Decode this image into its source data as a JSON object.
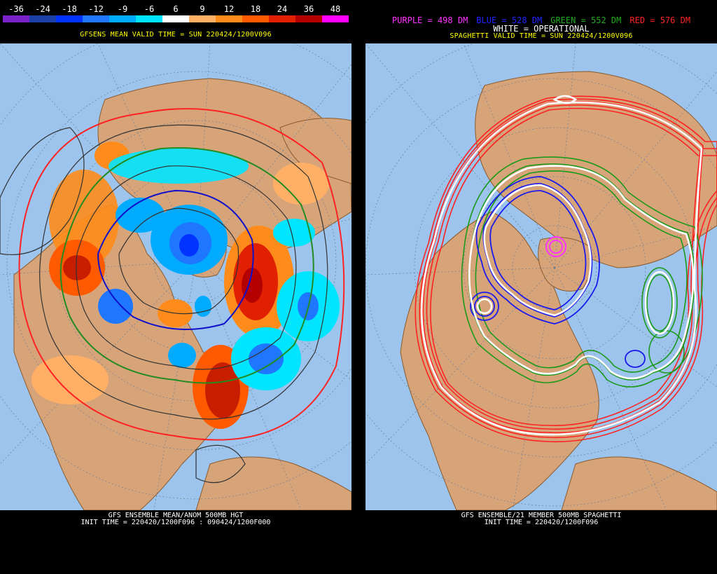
{
  "left": {
    "scale_labels": [
      "-36",
      "-24",
      "-18",
      "-12",
      "-9",
      "-6",
      "6",
      "9",
      "12",
      "18",
      "24",
      "36",
      "48"
    ],
    "scale_colors": [
      "#7a22c9",
      "#1a3fa6",
      "#0033ff",
      "#1f77ff",
      "#00aaff",
      "#00e5ff",
      "#ffffff",
      "#ffb066",
      "#ff8c1a",
      "#ff5a00",
      "#e02000",
      "#b40000",
      "#ff00ff"
    ],
    "header": "GFSENS MEAN VALID TIME = SUN 220424/1200V096",
    "footer_line1": "GFS ENSEMBLE MEAN/ANOM 500MB HGT",
    "footer_line2": "INIT TIME = 220420/1200F096 : 090424/1200F000"
  },
  "right": {
    "legend_items": [
      {
        "text": "PURPLE = 498 DM",
        "color": "#ff33ff"
      },
      {
        "text": "BLUE = 528 DM",
        "color": "#2222ff"
      },
      {
        "text": "GREEN = 552 DM",
        "color": "#22aa22"
      },
      {
        "text": "RED = 576 DM",
        "color": "#ff2222"
      }
    ],
    "legend_operational": "WHITE = OPERATIONAL",
    "header": "SPAGHETTI VALID TIME = SUN 220424/1200V096",
    "footer_line1": "GFS ENSEMBLE/21 MEMBER 500MB SPAGHETTI",
    "footer_line2": "INIT TIME = 220420/1200F096"
  },
  "colors": {
    "ocean": "#9cc4ec",
    "land": "#d7a47a",
    "coast": "#8b5a2b",
    "grid": "#6e7f93"
  }
}
